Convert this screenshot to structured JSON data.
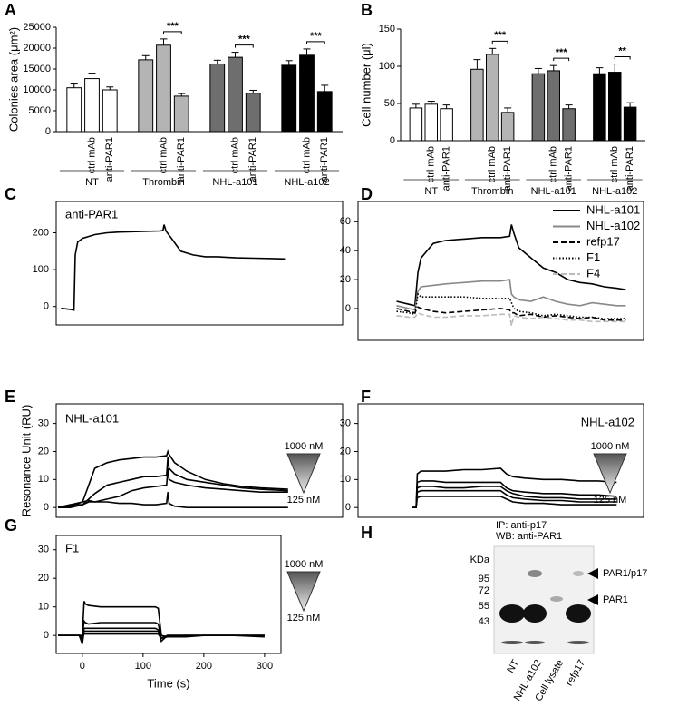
{
  "chart_data": [
    {
      "type": "bar",
      "panel": "A",
      "ylabel": "Colonies area (μm²)",
      "ylim": [
        0,
        25000
      ],
      "yticks": [
        0,
        5000,
        10000,
        15000,
        20000,
        25000
      ],
      "categories": [
        null,
        "ctrl mAb",
        "anti-PAR1"
      ],
      "series": [
        {
          "name": "NT",
          "color": "#ffffff",
          "values": [
            10500,
            12700,
            10000
          ],
          "errors": [
            900,
            1300,
            700
          ],
          "significance": null
        },
        {
          "name": "Thrombin",
          "color": "#b4b4b4",
          "values": [
            17200,
            20700,
            8500
          ],
          "errors": [
            1000,
            1500,
            600
          ],
          "significance": "***"
        },
        {
          "name": "NHL-a101",
          "color": "#6e6e6e",
          "values": [
            16200,
            17800,
            9200
          ],
          "errors": [
            900,
            1200,
            700
          ],
          "significance": "***"
        },
        {
          "name": "NHL-a102",
          "color": "#000000",
          "values": [
            15900,
            18300,
            9600
          ],
          "errors": [
            1100,
            1500,
            1500
          ],
          "significance": "***"
        }
      ]
    },
    {
      "type": "bar",
      "panel": "B",
      "ylabel": "Cell number (μl)",
      "ylim": [
        0,
        150
      ],
      "yticks": [
        0,
        50,
        100,
        150
      ],
      "categories": [
        null,
        "ctrl mAb",
        "anti-PAR1"
      ],
      "series": [
        {
          "name": "NT",
          "color": "#ffffff",
          "values": [
            44,
            49,
            43
          ],
          "errors": [
            5,
            4,
            5
          ],
          "significance": null
        },
        {
          "name": "Thrombin",
          "color": "#b4b4b4",
          "values": [
            96,
            116,
            38
          ],
          "errors": [
            13,
            8,
            6
          ],
          "significance": "***"
        },
        {
          "name": "NHL-a101",
          "color": "#6e6e6e",
          "values": [
            90,
            94,
            43
          ],
          "errors": [
            7,
            7,
            5
          ],
          "significance": "***"
        },
        {
          "name": "NHL-a102",
          "color": "#000000",
          "values": [
            90,
            92,
            45
          ],
          "errors": [
            8,
            11,
            6
          ],
          "significance": "**"
        }
      ]
    },
    {
      "type": "line",
      "panel": "C",
      "label": "anti-PAR1",
      "xlim": [
        -43,
        424
      ],
      "ylim": [
        -50,
        285
      ],
      "yticks": [
        0,
        100,
        200
      ],
      "x": [
        -35,
        -20,
        -14,
        -12,
        -8,
        0,
        20,
        40,
        60,
        80,
        100,
        125,
        131,
        133,
        136,
        145,
        160,
        180,
        200,
        220,
        250,
        280,
        310,
        330
      ],
      "series": [
        {
          "color": "#000000",
          "dash": "solid",
          "values": [
            -5,
            -8,
            -10,
            140,
            175,
            185,
            195,
            200,
            202,
            203,
            204,
            205,
            206,
            222,
            205,
            185,
            150,
            140,
            135,
            135,
            132,
            131,
            130,
            129
          ]
        }
      ]
    },
    {
      "type": "line",
      "panel": "D",
      "legend": "top-right",
      "xlim": [
        -43,
        424
      ],
      "ylim": [
        -22,
        74
      ],
      "yticks": [
        0,
        20,
        40,
        60
      ],
      "x": [
        20,
        40,
        50,
        55,
        60,
        80,
        100,
        130,
        160,
        190,
        205,
        208,
        212,
        220,
        240,
        260,
        280,
        300,
        320,
        340,
        360,
        380,
        395
      ],
      "series": [
        {
          "name": "NHL-a101",
          "color": "#000000",
          "dash": "solid",
          "values": [
            5,
            3,
            2,
            25,
            35,
            45,
            47,
            48,
            49,
            49,
            50,
            58,
            52,
            42,
            35,
            28,
            25,
            20,
            18,
            17,
            15,
            14,
            13
          ]
        },
        {
          "name": "NHL-a102",
          "color": "#888888",
          "dash": "solid",
          "values": [
            2,
            0,
            -1,
            12,
            15,
            16,
            17,
            18,
            19,
            19,
            20,
            10,
            8,
            6,
            5,
            8,
            5,
            3,
            2,
            4,
            3,
            2,
            2
          ]
        },
        {
          "name": "refp17",
          "color": "#000000",
          "dash": "dashed",
          "values": [
            0,
            -2,
            -3,
            1,
            0,
            -2,
            -3,
            -2,
            -1,
            0,
            -1,
            -3,
            -3,
            -5,
            -4,
            -6,
            -5,
            -6,
            -7,
            -6,
            -8,
            -8,
            -8
          ]
        },
        {
          "name": "F1",
          "color": "#000000",
          "dash": "dotted",
          "values": [
            -2,
            -3,
            -4,
            10,
            8,
            8,
            8,
            8,
            7,
            7,
            7,
            4,
            0,
            -2,
            -3,
            -5,
            -4,
            -5,
            -6,
            -6,
            -7,
            -7,
            -7
          ]
        },
        {
          "name": "F4",
          "color": "#bbbbbb",
          "dash": "dashed",
          "values": [
            -5,
            -6,
            -6,
            -3,
            -4,
            -6,
            -6,
            -5,
            -5,
            -4,
            -4,
            -12,
            -5,
            -6,
            -7,
            -6,
            -7,
            -8,
            -8,
            -9,
            -9,
            -9,
            -9
          ]
        }
      ]
    },
    {
      "type": "line",
      "panel": "E",
      "label": "NHL-a101",
      "ylabel": "Resonance Unit (RU)",
      "gradient_labels": [
        "1000 nM",
        "125 nM"
      ],
      "xlim": [
        -43,
        424
      ],
      "ylim": [
        -3.5,
        37
      ],
      "yticks": [
        0,
        10,
        20,
        30
      ],
      "x": [
        -40,
        -20,
        0,
        10,
        20,
        40,
        60,
        80,
        100,
        120,
        137,
        139,
        141,
        150,
        170,
        200,
        230,
        260,
        290,
        335
      ],
      "series": [
        {
          "color": "#000000",
          "dash": "solid",
          "values": [
            0,
            1,
            2,
            8,
            14,
            16,
            17,
            17.5,
            18,
            18,
            18.5,
            20,
            19,
            16,
            13,
            10,
            8.5,
            7.5,
            7,
            6.5
          ]
        },
        {
          "color": "#000000",
          "dash": "solid",
          "values": [
            0,
            1,
            1,
            3,
            5,
            8,
            9,
            10,
            11,
            11,
            11.5,
            18,
            14,
            12,
            10,
            9,
            8,
            7,
            6.5,
            6
          ]
        },
        {
          "color": "#000000",
          "dash": "solid",
          "values": [
            0,
            0,
            1,
            2,
            2,
            3,
            4,
            6,
            7,
            7.5,
            8,
            14,
            10,
            9,
            8,
            7,
            6.5,
            6,
            5.5,
            5.5
          ]
        },
        {
          "color": "#000000",
          "dash": "solid",
          "values": [
            0,
            0.5,
            2,
            2.5,
            2,
            2,
            1.5,
            1.5,
            1,
            1,
            1.5,
            5.5,
            1.5,
            0.5,
            0,
            0,
            0,
            0,
            0,
            0
          ]
        }
      ]
    },
    {
      "type": "line",
      "panel": "F",
      "label": "NHL-a102",
      "gradient_labels": [
        "1000 nM",
        "125 nM"
      ],
      "xlim": [
        -43,
        424
      ],
      "ylim": [
        -3.5,
        37
      ],
      "yticks": [
        0,
        10,
        20,
        30
      ],
      "x": [
        45,
        52,
        54,
        60,
        80,
        100,
        130,
        160,
        190,
        200,
        210,
        230,
        260,
        290,
        320,
        350,
        380
      ],
      "series": [
        {
          "color": "#000000",
          "dash": "solid",
          "values": [
            0,
            0,
            12,
            13,
            13,
            13,
            13.5,
            13.5,
            14,
            12,
            11,
            10.5,
            10,
            10,
            9.5,
            9.5,
            9
          ]
        },
        {
          "color": "#000000",
          "dash": "solid",
          "values": [
            0,
            0,
            9,
            9.5,
            9.5,
            9,
            9,
            9,
            9,
            7,
            6,
            5.5,
            5,
            5,
            4.5,
            4.5,
            4
          ]
        },
        {
          "color": "#000000",
          "dash": "solid",
          "values": [
            0,
            0,
            7,
            7.5,
            7.5,
            7,
            7,
            7.5,
            7.5,
            6,
            5,
            4,
            3.5,
            3.5,
            3,
            3,
            3
          ]
        },
        {
          "color": "#000000",
          "dash": "solid",
          "values": [
            0,
            0,
            5.5,
            6,
            6,
            6,
            6,
            6,
            6,
            4.5,
            3.5,
            3,
            2.5,
            2.5,
            2,
            2,
            2
          ]
        },
        {
          "color": "#000000",
          "dash": "solid",
          "values": [
            0,
            0,
            3.5,
            4,
            4,
            4,
            4,
            4,
            4,
            3,
            2,
            1.5,
            1.5,
            1,
            1,
            1,
            1
          ]
        }
      ]
    },
    {
      "type": "line",
      "panel": "G",
      "label": "F1",
      "xlabel": "Time (s)",
      "gradient_labels": [
        "1000 nM",
        "125 nM"
      ],
      "xlim": [
        -43,
        327
      ],
      "xticks": [
        0,
        100,
        200,
        300
      ],
      "ylim": [
        -6.3,
        35
      ],
      "yticks": [
        0,
        10,
        20,
        30
      ],
      "x": [
        -40,
        -20,
        -5,
        0,
        3,
        5,
        10,
        30,
        60,
        90,
        120,
        125,
        130,
        140,
        170,
        200,
        250,
        300
      ],
      "series": [
        {
          "color": "#000000",
          "dash": "solid",
          "values": [
            0,
            0,
            0,
            0,
            12,
            11,
            10.5,
            10,
            10,
            10,
            10,
            9.5,
            0,
            -0.5,
            -0.5,
            0,
            0,
            -0.5
          ]
        },
        {
          "color": "#000000",
          "dash": "solid",
          "values": [
            0,
            0,
            0,
            0,
            5,
            4.5,
            4,
            4.5,
            4.5,
            4.5,
            4.5,
            4,
            -1,
            -0.5,
            0,
            0,
            0,
            0
          ]
        },
        {
          "color": "#000000",
          "dash": "solid",
          "values": [
            0,
            0,
            0,
            -2,
            2.5,
            2.5,
            2.5,
            2.5,
            2.5,
            2.5,
            2.5,
            2,
            -1,
            0,
            0,
            0,
            0,
            0
          ]
        },
        {
          "color": "#000000",
          "dash": "solid",
          "values": [
            0,
            0,
            0,
            -3,
            1.5,
            1.5,
            1.5,
            1.5,
            1.5,
            1.5,
            1.5,
            1.5,
            -2,
            0,
            0,
            0,
            0,
            0
          ]
        },
        {
          "color": "#000000",
          "dash": "solid",
          "values": [
            0,
            0,
            0,
            -1,
            0.5,
            0.5,
            0.5,
            0.5,
            0.5,
            0.5,
            0.5,
            0.5,
            -1,
            0,
            0,
            0,
            0,
            0
          ]
        }
      ]
    }
  ],
  "blot": {
    "panel": "H",
    "ip": "IP: anti-p17",
    "wb": "WB: anti-PAR1",
    "unit": "KDa",
    "markers": [
      95,
      72,
      55,
      43
    ],
    "arrows": [
      "PAR1/p17",
      "PAR1"
    ],
    "lanes": [
      "NT",
      "NHL-a102",
      "Cell lysate",
      "refp17"
    ]
  }
}
